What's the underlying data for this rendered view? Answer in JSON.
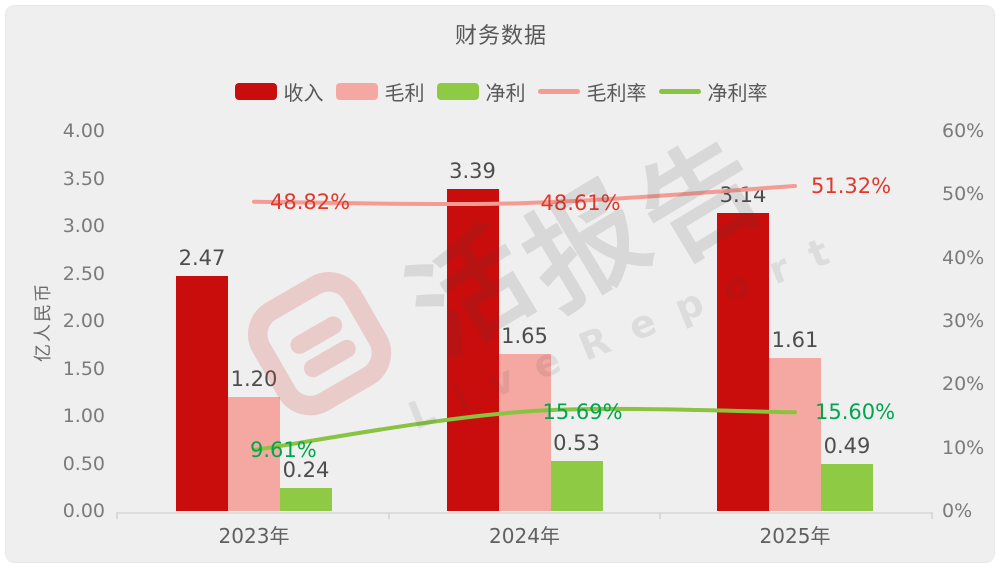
{
  "title": "财务数据",
  "legend": {
    "items": [
      {
        "label": "收入",
        "type": "bar",
        "color": "#c90d0d"
      },
      {
        "label": "毛利",
        "type": "bar",
        "color": "#f5a8a2"
      },
      {
        "label": "净利",
        "type": "bar",
        "color": "#8fca44"
      },
      {
        "label": "毛利率",
        "type": "line",
        "color": "#f49b94"
      },
      {
        "label": "净利率",
        "type": "line",
        "color": "#89c340"
      }
    ]
  },
  "watermark": {
    "logo_text": "活报告",
    "sub_text": "LiveReport"
  },
  "chart_data": {
    "type": "bar",
    "subtype": "grouped bars with two percentage lines on secondary axis",
    "categories": [
      "2023年",
      "2024年",
      "2025年"
    ],
    "bar_series": [
      {
        "id": "revenue",
        "name": "收入",
        "color": "#c90d0d",
        "values": [
          2.47,
          3.39,
          3.14
        ],
        "labels": [
          "2.47",
          "3.39",
          "3.14"
        ]
      },
      {
        "id": "gross-profit",
        "name": "毛利",
        "color": "#f5a8a2",
        "values": [
          1.2,
          1.65,
          1.61
        ],
        "labels": [
          "1.20",
          "1.65",
          "1.61"
        ]
      },
      {
        "id": "net-profit",
        "name": "净利",
        "color": "#8fca44",
        "values": [
          0.24,
          0.53,
          0.49
        ],
        "labels": [
          "0.24",
          "0.53",
          "0.49"
        ]
      }
    ],
    "line_series": [
      {
        "id": "gross-margin",
        "name": "毛利率",
        "color": "#f49b94",
        "label_color": "#e0392c",
        "values": [
          48.82,
          48.61,
          51.32
        ],
        "labels": [
          "48.82%",
          "48.61%",
          "51.32%"
        ]
      },
      {
        "id": "net-margin",
        "name": "净利率",
        "color": "#89c340",
        "label_color": "#00a551",
        "values": [
          9.61,
          15.69,
          15.6
        ],
        "labels": [
          "9.61%",
          "15.69%",
          "15.60%"
        ]
      }
    ],
    "left_axis": {
      "name": "亿人民币",
      "min": 0,
      "max": 4,
      "ticks": [
        "4.00",
        "3.50",
        "3.00",
        "2.50",
        "2.00",
        "1.50",
        "1.00",
        "0.50",
        "0.00"
      ]
    },
    "right_axis": {
      "min": 0,
      "max": 60,
      "ticks": [
        "60%",
        "50%",
        "40%",
        "30%",
        "20%",
        "10%",
        "0%"
      ]
    },
    "grid": false,
    "legend_position": "top"
  }
}
